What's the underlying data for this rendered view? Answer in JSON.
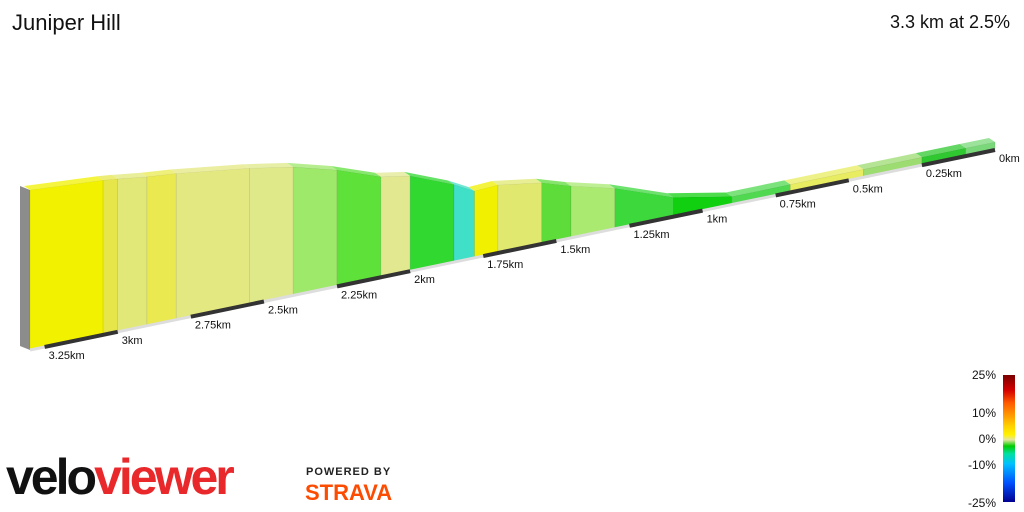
{
  "header": {
    "title": "Juniper Hill",
    "summary": "3.3 km at 2.5%"
  },
  "legend": {
    "labels": [
      "25%",
      "10%",
      "0%",
      "-10%",
      "-25%"
    ]
  },
  "branding": {
    "logo_velo": "velo",
    "logo_viewer": "viewer",
    "powered_by": "POWERED BY",
    "strava": "STRAVA"
  },
  "colors": {
    "brand_red": "#e8282b",
    "strava_orange": "#fc4c02"
  },
  "chart_data": {
    "type": "area",
    "title": "Juniper Hill",
    "xlabel": "",
    "ylabel": "",
    "x_ticks": [
      "3.25km",
      "3km",
      "2.75km",
      "2.5km",
      "2.25km",
      "2km",
      "1.75km",
      "1.5km",
      "1.25km",
      "1km",
      "0.75km",
      "0.5km",
      "0.25km",
      "0km"
    ],
    "tick_km": [
      3.25,
      3.0,
      2.75,
      2.5,
      2.25,
      2.0,
      1.75,
      1.5,
      1.25,
      1.0,
      0.75,
      0.5,
      0.25,
      0.0
    ],
    "total_km": 3.3,
    "avg_grade_pct": 2.5,
    "grade_scale_pct": [
      25,
      10,
      0,
      -10,
      -25
    ],
    "segments": [
      {
        "d": 3.3,
        "g": 3.0,
        "c": "#f2f200"
      },
      {
        "d": 3.05,
        "g": 2.0,
        "c": "#e6e64a"
      },
      {
        "d": 3.0,
        "g": 1.5,
        "c": "#e2e878"
      },
      {
        "d": 2.9,
        "g": 2.5,
        "c": "#eaea50"
      },
      {
        "d": 2.8,
        "g": 1.5,
        "c": "#e4e880"
      },
      {
        "d": 2.55,
        "g": 0.5,
        "c": "#dfe98a"
      },
      {
        "d": 2.4,
        "g": -2.0,
        "c": "#9ee86a"
      },
      {
        "d": 2.25,
        "g": -4.0,
        "c": "#5ee23a"
      },
      {
        "d": 2.1,
        "g": 0.5,
        "c": "#e2e890"
      },
      {
        "d": 2.0,
        "g": -5.0,
        "c": "#30d830"
      },
      {
        "d": 1.85,
        "g": -8.0,
        "c": "#40e0c8"
      },
      {
        "d": 1.78,
        "g": 6.0,
        "c": "#f0f000"
      },
      {
        "d": 1.7,
        "g": 1.0,
        "c": "#e0e870"
      },
      {
        "d": 1.55,
        "g": -3.0,
        "c": "#5edc3a"
      },
      {
        "d": 1.45,
        "g": -1.5,
        "c": "#aaea70"
      },
      {
        "d": 1.3,
        "g": -4.0,
        "c": "#3cd83c"
      },
      {
        "d": 1.1,
        "g": -6.0,
        "c": "#10d010"
      },
      {
        "d": 0.9,
        "g": -3.0,
        "c": "#50d850"
      },
      {
        "d": 0.7,
        "g": 1.5,
        "c": "#e8ec60"
      },
      {
        "d": 0.45,
        "g": -2.0,
        "c": "#9cdc70"
      },
      {
        "d": 0.25,
        "g": -4.0,
        "c": "#30c830"
      },
      {
        "d": 0.1,
        "g": -3.0,
        "c": "#7ad87a"
      }
    ]
  }
}
